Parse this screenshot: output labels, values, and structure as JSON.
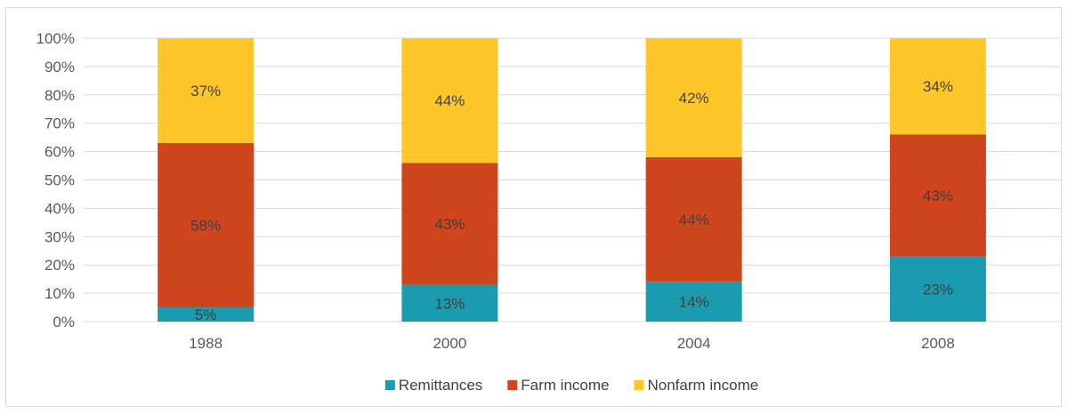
{
  "chart_data": {
    "type": "bar",
    "stacked": true,
    "categories": [
      "1988",
      "2000",
      "2004",
      "2008"
    ],
    "series": [
      {
        "name": "Remittances",
        "color": "#1a9bb0",
        "values": [
          5,
          13,
          14,
          23
        ],
        "labels": [
          "5%",
          "13%",
          "14%",
          "23%"
        ]
      },
      {
        "name": "Farm income",
        "color": "#cf451e",
        "values": [
          58,
          43,
          44,
          43
        ],
        "labels": [
          "58%",
          "43%",
          "44%",
          "43%"
        ]
      },
      {
        "name": "Nonfarm income",
        "color": "#ffc62a",
        "values": [
          37,
          44,
          42,
          34
        ],
        "labels": [
          "37%",
          "44%",
          "42%",
          "34%"
        ]
      }
    ],
    "ylim": [
      0,
      100
    ],
    "yticks": [
      "0%",
      "10%",
      "20%",
      "30%",
      "40%",
      "50%",
      "60%",
      "70%",
      "80%",
      "90%",
      "100%"
    ],
    "grid": true,
    "legend_position": "bottom"
  }
}
